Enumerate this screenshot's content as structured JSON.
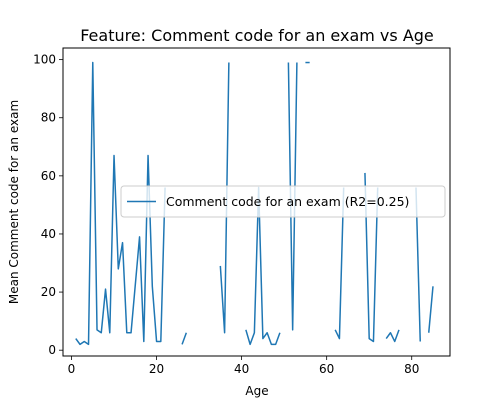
{
  "chart_data": {
    "type": "line",
    "title": "Feature: Comment code for an exam vs Age",
    "xlabel": "Age",
    "ylabel": "Mean Comment code for an exam",
    "xlim": [
      -2,
      89
    ],
    "ylim": [
      -2,
      104
    ],
    "xticks": [
      0,
      20,
      40,
      60,
      80
    ],
    "yticks": [
      0,
      20,
      40,
      60,
      80,
      100
    ],
    "grid": false,
    "legend_position": "center-right",
    "series": [
      {
        "name": "Comment code for an exam (R2=0.25)",
        "color": "#1f77b4",
        "segments": [
          [
            [
              1,
              4
            ],
            [
              2,
              2
            ],
            [
              3,
              3
            ],
            [
              4,
              2
            ],
            [
              5,
              99
            ],
            [
              6,
              7
            ],
            [
              7,
              6
            ],
            [
              8,
              21
            ],
            [
              9,
              6
            ],
            [
              10,
              67
            ],
            [
              11,
              28
            ],
            [
              12,
              37
            ],
            [
              13,
              6
            ],
            [
              14,
              6
            ],
            [
              16,
              39
            ],
            [
              17,
              3
            ],
            [
              18,
              67
            ],
            [
              19,
              22
            ],
            [
              20,
              3
            ],
            [
              21,
              3
            ],
            [
              22,
              56
            ]
          ],
          [
            [
              26,
              2
            ],
            [
              27,
              6
            ]
          ],
          [
            [
              35,
              29
            ],
            [
              36,
              6
            ],
            [
              37,
              99
            ]
          ],
          [
            [
              41,
              7
            ],
            [
              42,
              2
            ],
            [
              43,
              6
            ],
            [
              44,
              56
            ],
            [
              45,
              4
            ],
            [
              46,
              6
            ],
            [
              47,
              2
            ],
            [
              48,
              2
            ],
            [
              49,
              6
            ]
          ],
          [
            [
              51,
              99
            ],
            [
              52,
              7
            ],
            [
              53,
              99
            ]
          ],
          [
            [
              55,
              99
            ],
            [
              56,
              99
            ]
          ],
          [
            [
              62,
              7
            ],
            [
              63,
              4
            ],
            [
              64,
              56
            ]
          ],
          [
            [
              69,
              61
            ],
            [
              70,
              4
            ],
            [
              71,
              3
            ],
            [
              72,
              56
            ]
          ],
          [
            [
              74,
              4
            ],
            [
              75,
              6
            ],
            [
              76,
              3
            ],
            [
              77,
              7
            ]
          ],
          [
            [
              81,
              56
            ],
            [
              82,
              3
            ]
          ],
          [
            [
              84,
              6
            ],
            [
              85,
              22
            ]
          ]
        ]
      }
    ]
  }
}
